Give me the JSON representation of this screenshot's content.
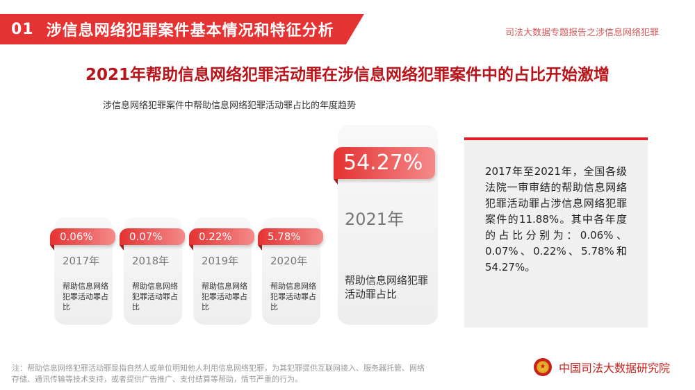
{
  "header": {
    "number": "01",
    "title": "涉信息网络犯罪案件基本情况和特征分析"
  },
  "report_label": "司法大数据专题报告之涉信息网络犯罪",
  "main_title": "2021年帮助信息网络犯罪活动罪在涉信息网络犯罪案件中的占比开始激增",
  "subtitle": "涉信息网络犯罪案件中帮助信息网络犯罪活动罪占比的年度趋势",
  "cards": [
    {
      "pct": "0.06%",
      "year": "2017年",
      "desc": "帮助信息网络犯罪活动罪占比"
    },
    {
      "pct": "0.07%",
      "year": "2018年",
      "desc": "帮助信息网络犯罪活动罪占比"
    },
    {
      "pct": "0.22%",
      "year": "2019年",
      "desc": "帮助信息网络犯罪活动罪占比"
    },
    {
      "pct": "5.78%",
      "year": "2020年",
      "desc": "帮助信息网络犯罪活动罪占比"
    },
    {
      "pct": "54.27%",
      "year": "2021年",
      "desc": "帮助信息网络犯罪活动罪占比"
    }
  ],
  "info_text": "2017年至2021年，全国各级法院一审审结的帮助信息网络犯罪活动罪占涉信息网络犯罪案件的11.88%。其中各年度的占比分别为：0.06%、0.07%、0.22%、5.78%和54.27%。",
  "footnote": "注：帮助信息网络犯罪活动罪是指自然人或单位明知他人利用信息网络犯罪，为其犯罪提供互联网接入、服务器托管、网络存储、通讯传输等技术支持，或者提供广告推广、支付结算等帮助，情节严重的行为。",
  "brand": {
    "emblem_icon": "court-emblem-icon",
    "name": "中国司法大数据研究院"
  },
  "colors": {
    "accent_red": "#e53232",
    "title_red": "#b8141a",
    "info_border": "#e02020"
  }
}
